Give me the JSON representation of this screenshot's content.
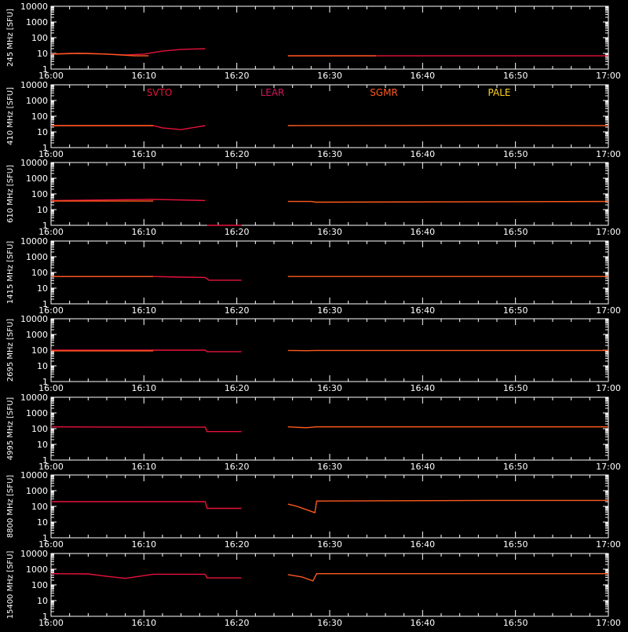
{
  "chart_data": {
    "type": "line",
    "x_axis": {
      "range": [
        "16:00",
        "17:00"
      ],
      "tick_labels": [
        "16:00",
        "16:10",
        "16:20",
        "16:30",
        "16:40",
        "16:50",
        "17:00"
      ]
    },
    "y_axis": {
      "scale": "log",
      "ylim": [
        1,
        10000
      ],
      "tick_labels": [
        "1",
        "10",
        "100",
        "1000",
        "10000"
      ]
    },
    "station_legend": [
      {
        "name": "SVTO",
        "color": "#e8123a"
      },
      {
        "name": "LEAR",
        "color": "#d0165e"
      },
      {
        "name": "SGMR",
        "color": "#ff5a1e"
      },
      {
        "name": "PALE",
        "color": "#ffd21e"
      }
    ],
    "panels": [
      {
        "ylabel": "245 MHz [SFU]",
        "series": [
          {
            "station": "SVTO",
            "color": "#e8123a",
            "x": [
              0,
              2,
              4,
              6,
              8,
              10,
              12,
              14,
              16.6
            ],
            "y": [
              9,
              10,
              10,
              9,
              8,
              9,
              14,
              18,
              20
            ]
          },
          {
            "station": "SGMR",
            "color": "#ff5a1e",
            "x": [
              0,
              3,
              6,
              9,
              10.5
            ],
            "y": [
              9,
              10,
              9,
              7,
              7
            ]
          },
          {
            "station": "SVTO",
            "color": "#e8123a",
            "x": [
              25.5,
              60
            ],
            "y": [
              7,
              7
            ]
          },
          {
            "station": "SGMR",
            "color": "#ff5a1e",
            "x": [
              25.5,
              35
            ],
            "y": [
              7,
              7
            ]
          }
        ]
      },
      {
        "ylabel": "410 MHz [SFU]",
        "series": [
          {
            "station": "SVTO",
            "color": "#e8123a",
            "x": [
              0,
              11,
              12,
              14,
              16.6
            ],
            "y": [
              25,
              25,
              18,
              14,
              25
            ]
          },
          {
            "station": "SGMR",
            "color": "#ff5a1e",
            "x": [
              0,
              11
            ],
            "y": [
              25,
              25
            ]
          },
          {
            "station": "SGMR",
            "color": "#ff5a1e",
            "x": [
              25.5,
              47,
              60
            ],
            "y": [
              25,
              26,
              25
            ]
          }
        ]
      },
      {
        "ylabel": "610 MHz [SFU]",
        "series": [
          {
            "station": "SVTO",
            "color": "#e8123a",
            "x": [
              0,
              11,
              16.6
            ],
            "y": [
              38,
              45,
              38
            ]
          },
          {
            "station": "SGMR",
            "color": "#ff5a1e",
            "x": [
              0,
              11
            ],
            "y": [
              35,
              35
            ]
          },
          {
            "station": "SVTO",
            "color": "#e8123a",
            "x": [
              16.8,
              20.5
            ],
            "y": [
              1,
              1
            ]
          },
          {
            "station": "SGMR",
            "color": "#ff5a1e",
            "x": [
              25.5,
              28,
              28.5,
              60
            ],
            "y": [
              33,
              33,
              30,
              33
            ]
          }
        ]
      },
      {
        "ylabel": "1415 MHz [SFU]",
        "series": [
          {
            "station": "SVTO",
            "color": "#e8123a",
            "x": [
              0,
              11,
              14,
              16.6,
              17,
              20.5
            ],
            "y": [
              55,
              55,
              50,
              48,
              32,
              32
            ]
          },
          {
            "station": "SGMR",
            "color": "#ff5a1e",
            "x": [
              0,
              11
            ],
            "y": [
              55,
              55
            ]
          },
          {
            "station": "SGMR",
            "color": "#ff5a1e",
            "x": [
              25.5,
              60
            ],
            "y": [
              55,
              55
            ]
          }
        ]
      },
      {
        "ylabel": "2695 MHz [SFU]",
        "series": [
          {
            "station": "SVTO",
            "color": "#e8123a",
            "x": [
              0,
              16.6,
              16.8,
              20.5
            ],
            "y": [
              100,
              100,
              80,
              80
            ]
          },
          {
            "station": "SGMR",
            "color": "#ff5a1e",
            "x": [
              0,
              11
            ],
            "y": [
              90,
              90
            ]
          },
          {
            "station": "SGMR",
            "color": "#ff5a1e",
            "x": [
              25.5,
              27.5,
              28.5,
              60
            ],
            "y": [
              95,
              92,
              95,
              95
            ]
          }
        ]
      },
      {
        "ylabel": "4995 MHz [SFU]",
        "series": [
          {
            "station": "SVTO",
            "color": "#e8123a",
            "x": [
              0,
              11,
              16.6,
              16.8,
              20.5
            ],
            "y": [
              130,
              125,
              125,
              65,
              65
            ]
          },
          {
            "station": "SGMR",
            "color": "#ff5a1e",
            "x": [
              25.5,
              27.5,
              28.5,
              60
            ],
            "y": [
              130,
              115,
              130,
              130
            ]
          }
        ]
      },
      {
        "ylabel": "8800 MHz [SFU]",
        "series": [
          {
            "station": "SVTO",
            "color": "#e8123a",
            "x": [
              0,
              16.6,
              16.8,
              20.5
            ],
            "y": [
              200,
              200,
              75,
              75
            ]
          },
          {
            "station": "SGMR",
            "color": "#ff5a1e",
            "x": [
              25.5,
              26.5,
              28.4,
              28.6,
              47,
              60
            ],
            "y": [
              140,
              100,
              40,
              220,
              240,
              240
            ]
          }
        ]
      },
      {
        "ylabel": "15400 MHz [SFU]",
        "series": [
          {
            "station": "SVTO",
            "color": "#e8123a",
            "x": [
              0,
              4,
              6,
              8,
              11,
              16.6,
              16.8,
              20.5
            ],
            "y": [
              520,
              500,
              350,
              260,
              480,
              480,
              280,
              280
            ]
          },
          {
            "station": "SGMR",
            "color": "#ff5a1e",
            "x": [
              25.5,
              27,
              28.2,
              28.6,
              60
            ],
            "y": [
              450,
              320,
              180,
              520,
              520
            ]
          }
        ]
      }
    ]
  }
}
